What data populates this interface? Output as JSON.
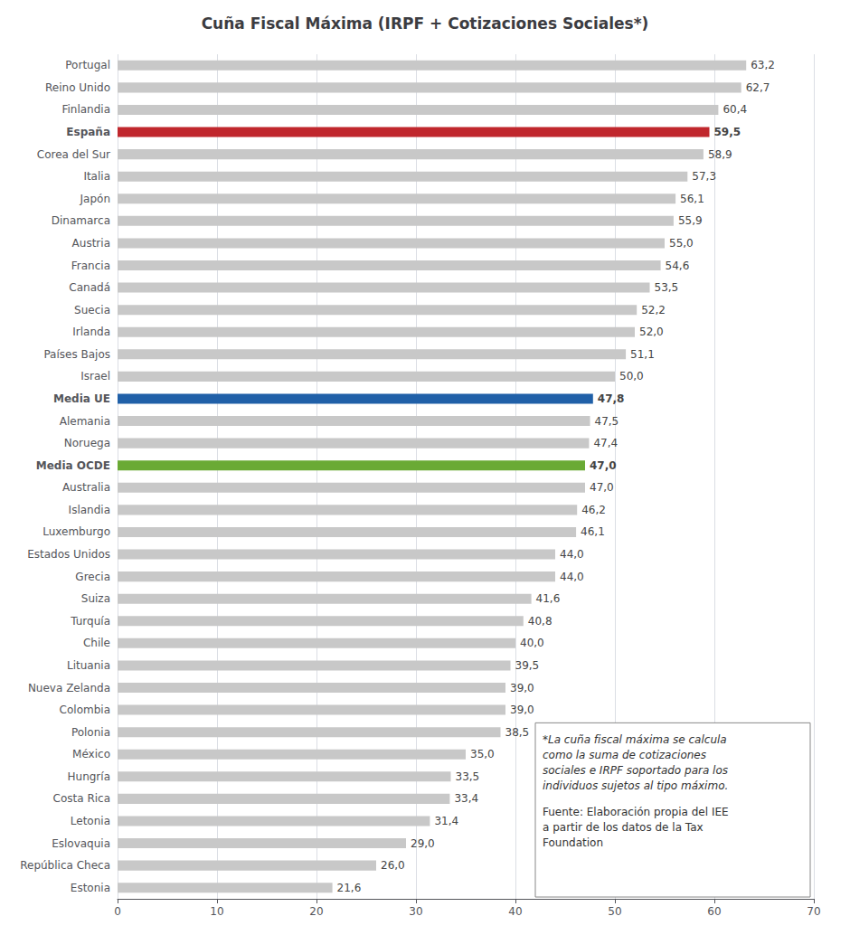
{
  "chart_data": {
    "type": "bar",
    "orientation": "horizontal",
    "title": "Cuña Fiscal Máxima (IRPF + Cotizaciones Sociales*)",
    "categories": [
      "Portugal",
      "Reino Unido",
      "Finlandia",
      "España",
      "Corea del Sur",
      "Italia",
      "Japón",
      "Dinamarca",
      "Austria",
      "Francia",
      "Canadá",
      "Suecia",
      "Irlanda",
      "Países Bajos",
      "Israel",
      "Media UE",
      "Alemania",
      "Noruega",
      "Media OCDE",
      "Australia",
      "Islandia",
      "Luxemburgo",
      "Estados Unidos",
      "Grecia",
      "Suiza",
      "Turquía",
      "Chile",
      "Lituania",
      "Nueva Zelanda",
      "Colombia",
      "Polonia",
      "México",
      "Hungría",
      "Costa Rica",
      "Letonia",
      "Eslovaquia",
      "República Checa",
      "Estonia"
    ],
    "values": [
      63.2,
      62.7,
      60.4,
      59.5,
      58.9,
      57.3,
      56.1,
      55.9,
      55.0,
      54.6,
      53.5,
      52.2,
      52.0,
      51.1,
      50.0,
      47.8,
      47.5,
      47.4,
      47.0,
      47.0,
      46.2,
      46.1,
      44.0,
      44.0,
      41.6,
      40.8,
      40.0,
      39.5,
      39.0,
      39.0,
      38.5,
      35.0,
      33.5,
      33.4,
      31.4,
      29.0,
      26.0,
      21.6
    ],
    "value_labels": [
      "63,2",
      "62,7",
      "60,4",
      "59,5",
      "58,9",
      "57,3",
      "56,1",
      "55,9",
      "55,0",
      "54,6",
      "53,5",
      "52,2",
      "52,0",
      "51,1",
      "50,0",
      "47,8",
      "47,5",
      "47,4",
      "47,0",
      "47,0",
      "46,2",
      "46,1",
      "44,0",
      "44,0",
      "41,6",
      "40,8",
      "40,0",
      "39,5",
      "39,0",
      "39,0",
      "38,5",
      "35,0",
      "33,5",
      "33,4",
      "31,4",
      "29,0",
      "26,0",
      "21,6"
    ],
    "colors": [
      "#c8c8c8",
      "#c8c8c8",
      "#c8c8c8",
      "#c0272d",
      "#c8c8c8",
      "#c8c8c8",
      "#c8c8c8",
      "#c8c8c8",
      "#c8c8c8",
      "#c8c8c8",
      "#c8c8c8",
      "#c8c8c8",
      "#c8c8c8",
      "#c8c8c8",
      "#c8c8c8",
      "#2060a8",
      "#c8c8c8",
      "#c8c8c8",
      "#6aaa35",
      "#c8c8c8",
      "#c8c8c8",
      "#c8c8c8",
      "#c8c8c8",
      "#c8c8c8",
      "#c8c8c8",
      "#c8c8c8",
      "#c8c8c8",
      "#c8c8c8",
      "#c8c8c8",
      "#c8c8c8",
      "#c8c8c8",
      "#c8c8c8",
      "#c8c8c8",
      "#c8c8c8",
      "#c8c8c8",
      "#c8c8c8",
      "#c8c8c8",
      "#c8c8c8"
    ],
    "xlim": [
      0,
      70
    ],
    "xticks": [
      0,
      10,
      20,
      30,
      40,
      50,
      60,
      70
    ],
    "grid": true,
    "data_labels": true,
    "annotations": [
      "*La cuña fiscal máxima se calcula\ncomo la suma de cotizaciones\nsociales e IRPF soportado para los\nindividuos sujetos al tipo máximo.",
      "Fuente: Elaboración propia del IEE\na partir de los datos de la Tax\nFoundation"
    ]
  }
}
